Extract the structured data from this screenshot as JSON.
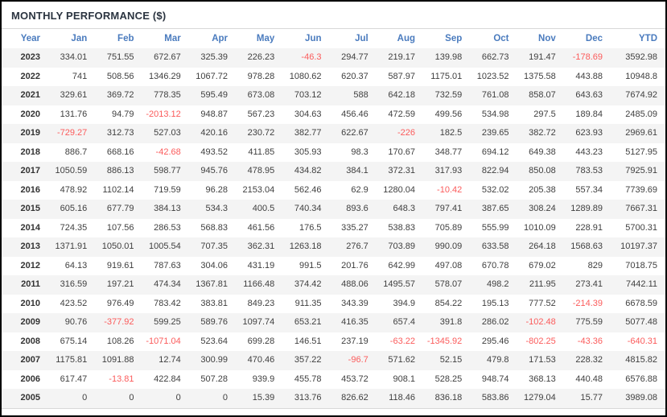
{
  "panel": {
    "title": "MONTHLY PERFORMANCE ($)"
  },
  "colors": {
    "title_text": "#2b3440",
    "header_text": "#4a7bbe",
    "body_text": "#3f3f3f",
    "negative_value": "#fb5b5b",
    "row_stripe": "#f4f4f4",
    "divider": "#d8d8d8",
    "outer_border": "#000000"
  },
  "chart_data": {
    "type": "table",
    "title": "MONTHLY PERFORMANCE ($)",
    "columns": [
      "Year",
      "Jan",
      "Feb",
      "Mar",
      "Apr",
      "May",
      "Jun",
      "Jul",
      "Aug",
      "Sep",
      "Oct",
      "Nov",
      "Dec",
      "YTD"
    ],
    "rows": [
      [
        "2023",
        334.01,
        751.55,
        672.67,
        325.39,
        226.23,
        -46.3,
        294.77,
        219.17,
        139.98,
        662.73,
        191.47,
        -178.69,
        3592.98
      ],
      [
        "2022",
        741,
        508.56,
        1346.29,
        1067.72,
        978.28,
        1080.62,
        620.37,
        587.97,
        1175.01,
        1023.52,
        1375.58,
        443.88,
        10948.8
      ],
      [
        "2021",
        329.61,
        369.72,
        778.35,
        595.49,
        673.08,
        703.12,
        588,
        642.18,
        732.59,
        761.08,
        858.07,
        643.63,
        7674.92
      ],
      [
        "2020",
        131.76,
        94.79,
        -2013.12,
        948.87,
        567.23,
        304.63,
        456.46,
        472.59,
        499.56,
        534.98,
        297.5,
        189.84,
        2485.09
      ],
      [
        "2019",
        -729.27,
        312.73,
        527.03,
        420.16,
        230.72,
        382.77,
        622.67,
        -226,
        182.5,
        239.65,
        382.72,
        623.93,
        2969.61
      ],
      [
        "2018",
        886.7,
        668.16,
        -42.68,
        493.52,
        411.85,
        305.93,
        98.3,
        170.67,
        348.77,
        694.12,
        649.38,
        443.23,
        5127.95
      ],
      [
        "2017",
        1050.59,
        886.13,
        598.77,
        945.76,
        478.95,
        434.82,
        384.1,
        372.31,
        317.93,
        822.94,
        850.08,
        783.53,
        7925.91
      ],
      [
        "2016",
        478.92,
        1102.14,
        719.59,
        96.28,
        2153.04,
        562.46,
        62.9,
        1280.04,
        -10.42,
        532.02,
        205.38,
        557.34,
        7739.69
      ],
      [
        "2015",
        605.16,
        677.79,
        384.13,
        534.3,
        400.5,
        740.34,
        893.6,
        648.3,
        797.41,
        387.65,
        308.24,
        1289.89,
        7667.31
      ],
      [
        "2014",
        724.35,
        107.56,
        286.53,
        568.83,
        461.56,
        176.5,
        335.27,
        538.83,
        705.89,
        555.99,
        1010.09,
        228.91,
        5700.31
      ],
      [
        "2013",
        1371.91,
        1050.01,
        1005.54,
        707.35,
        362.31,
        1263.18,
        276.7,
        703.89,
        990.09,
        633.58,
        264.18,
        1568.63,
        10197.37
      ],
      [
        "2012",
        64.13,
        919.61,
        787.63,
        304.06,
        431.19,
        991.5,
        201.76,
        642.99,
        497.08,
        670.78,
        679.02,
        829,
        7018.75
      ],
      [
        "2011",
        316.59,
        197.21,
        474.34,
        1367.81,
        1166.48,
        374.42,
        488.06,
        1495.57,
        578.07,
        498.2,
        211.95,
        273.41,
        7442.11
      ],
      [
        "2010",
        423.52,
        976.49,
        783.42,
        383.81,
        849.23,
        911.35,
        343.39,
        394.9,
        854.22,
        195.13,
        777.52,
        -214.39,
        6678.59
      ],
      [
        "2009",
        90.76,
        -377.92,
        599.25,
        589.76,
        1097.74,
        653.21,
        416.35,
        657.4,
        391.8,
        286.02,
        -102.48,
        775.59,
        5077.48
      ],
      [
        "2008",
        675.14,
        108.26,
        -1071.04,
        523.64,
        699.28,
        146.51,
        237.19,
        -63.22,
        -1345.92,
        295.46,
        -802.25,
        -43.36,
        -640.31
      ],
      [
        "2007",
        1175.81,
        1091.88,
        12.74,
        300.99,
        470.46,
        357.22,
        -96.7,
        571.62,
        52.15,
        479.8,
        171.53,
        228.32,
        4815.82
      ],
      [
        "2006",
        617.47,
        -13.81,
        422.84,
        507.28,
        939.9,
        455.78,
        453.72,
        908.1,
        528.25,
        948.74,
        368.13,
        440.48,
        6576.88
      ],
      [
        "2005",
        0,
        0,
        0,
        0,
        15.39,
        313.76,
        826.62,
        118.46,
        836.18,
        583.86,
        1279.04,
        15.77,
        3989.08
      ]
    ],
    "layout_hints": {
      "negative_values_in_red": true,
      "zebra_striping": "odd rows light gray",
      "alignment": "all numeric cells right-aligned",
      "year_column_bold": true
    }
  }
}
